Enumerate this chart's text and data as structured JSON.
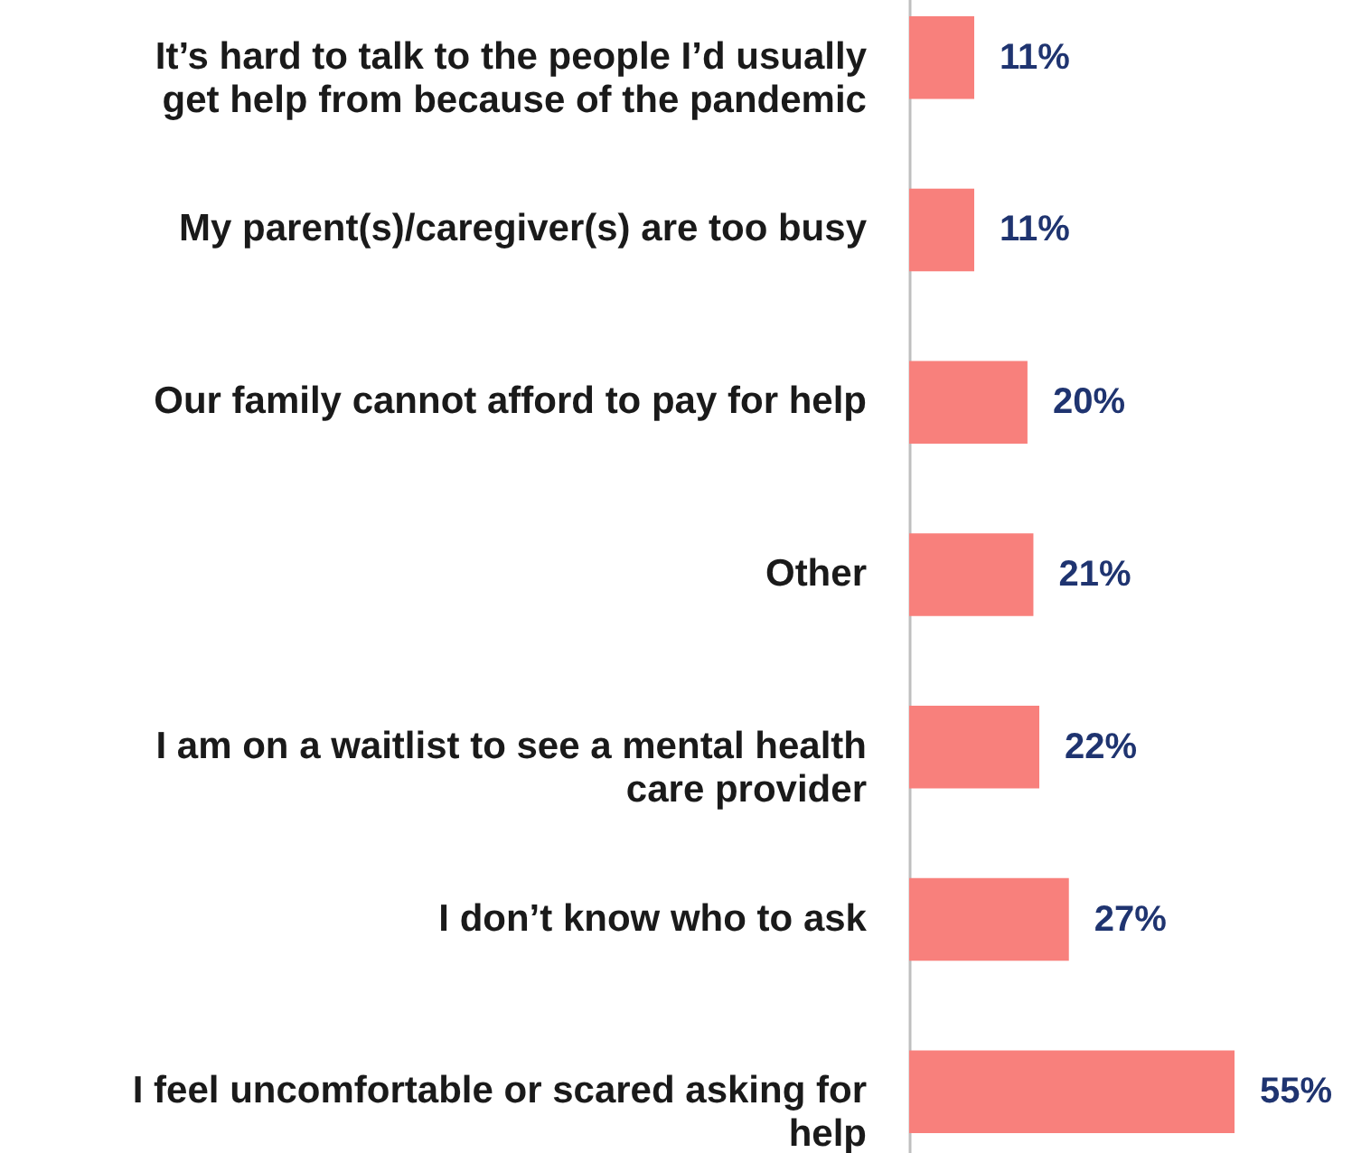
{
  "chart_data": {
    "type": "bar",
    "orientation": "horizontal",
    "categories": [
      "It’s hard to talk to the people I’d usually get help from because of the pandemic",
      "My parent(s)/caregiver(s) are too busy",
      "Our family cannot afford to pay for help",
      "Other",
      "I am on a waitlist to see a mental health care provider",
      "I don’t know who to ask",
      "I feel uncomfortable or scared asking for help"
    ],
    "values": [
      11,
      11,
      20,
      21,
      22,
      27,
      55
    ],
    "color": "#f8807c",
    "data_labels": true,
    "value_labels": [
      "11%",
      "11%",
      "20%",
      "21%",
      "22%",
      "27%",
      "55%"
    ]
  }
}
